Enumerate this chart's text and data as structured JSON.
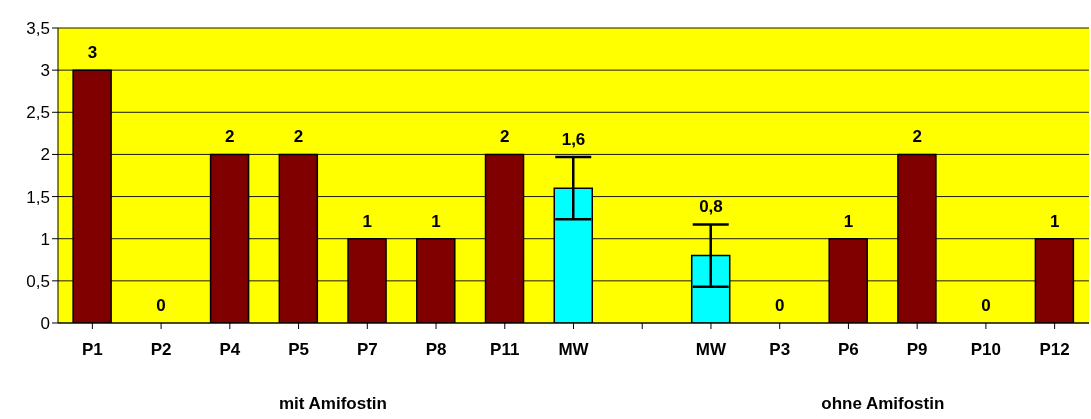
{
  "chart_data": {
    "type": "bar",
    "categories": [
      "P1",
      "P2",
      "P4",
      "P5",
      "P7",
      "P8",
      "P11",
      "MW",
      null,
      "MW",
      "P3",
      "P6",
      "P9",
      "P10",
      "P12"
    ],
    "values": [
      3,
      0,
      2,
      2,
      1,
      1,
      2,
      1.6,
      null,
      0.8,
      0,
      1,
      2,
      0,
      1
    ],
    "colors": [
      "#800000",
      "#800000",
      "#800000",
      "#800000",
      "#800000",
      "#800000",
      "#800000",
      "#00ffff",
      null,
      "#00ffff",
      "#800000",
      "#800000",
      "#800000",
      "#800000",
      "#800000"
    ],
    "errors": [
      null,
      null,
      null,
      null,
      null,
      null,
      null,
      0.37,
      null,
      0.37,
      null,
      null,
      null,
      null,
      null
    ],
    "value_labels": [
      "3",
      "0",
      "2",
      "2",
      "1",
      "1",
      "2",
      "1,6",
      null,
      "0,8",
      "0",
      "1",
      "2",
      "0",
      "1"
    ],
    "ylim": [
      0,
      3.5
    ],
    "yticks": [
      {
        "value": 0,
        "label": "0"
      },
      {
        "value": 0.5,
        "label": "0,5"
      },
      {
        "value": 1,
        "label": "1"
      },
      {
        "value": 1.5,
        "label": "1,5"
      },
      {
        "value": 2,
        "label": "2"
      },
      {
        "value": 2.5,
        "label": "2,5"
      },
      {
        "value": 3,
        "label": "3"
      },
      {
        "value": 3.5,
        "label": "3,5"
      }
    ],
    "grid": "y",
    "legend": false,
    "annotations": [
      "mit Amifostin",
      "ohne Amifostin"
    ]
  }
}
